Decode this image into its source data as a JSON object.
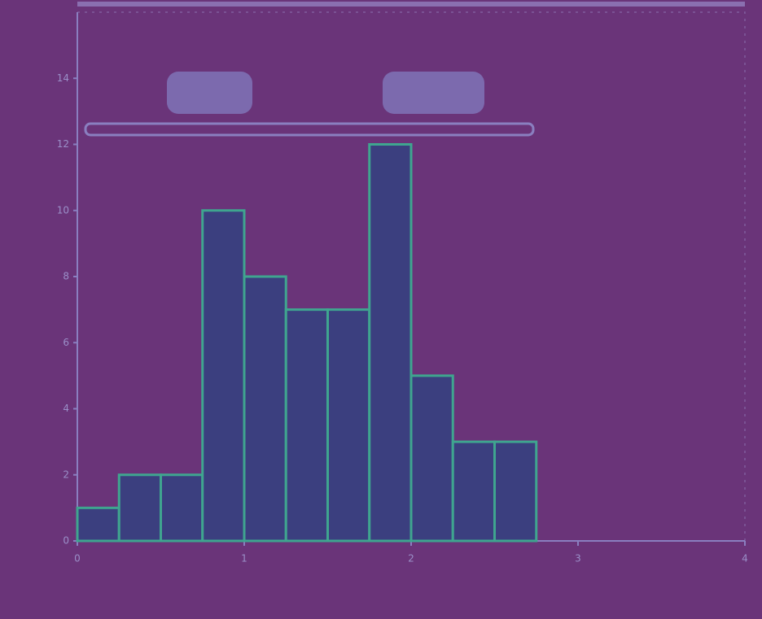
{
  "chart_data": {
    "type": "histogram",
    "bins": [
      0,
      0.25,
      0.5,
      0.75,
      1,
      1.25,
      1.5,
      1.75,
      2,
      2.25,
      2.5,
      2.75
    ],
    "values": [
      1,
      2,
      2,
      10,
      8,
      7,
      7,
      12,
      5,
      3,
      3
    ],
    "color": "#3b3f7f",
    "edge_color": "#3fa58f",
    "xlim": [
      0,
      4
    ],
    "xticks": [
      0,
      1,
      2,
      3,
      4
    ],
    "ylim": [
      0,
      16
    ],
    "yticks": [
      0,
      2,
      4,
      6,
      8,
      10,
      12,
      14
    ]
  }
}
